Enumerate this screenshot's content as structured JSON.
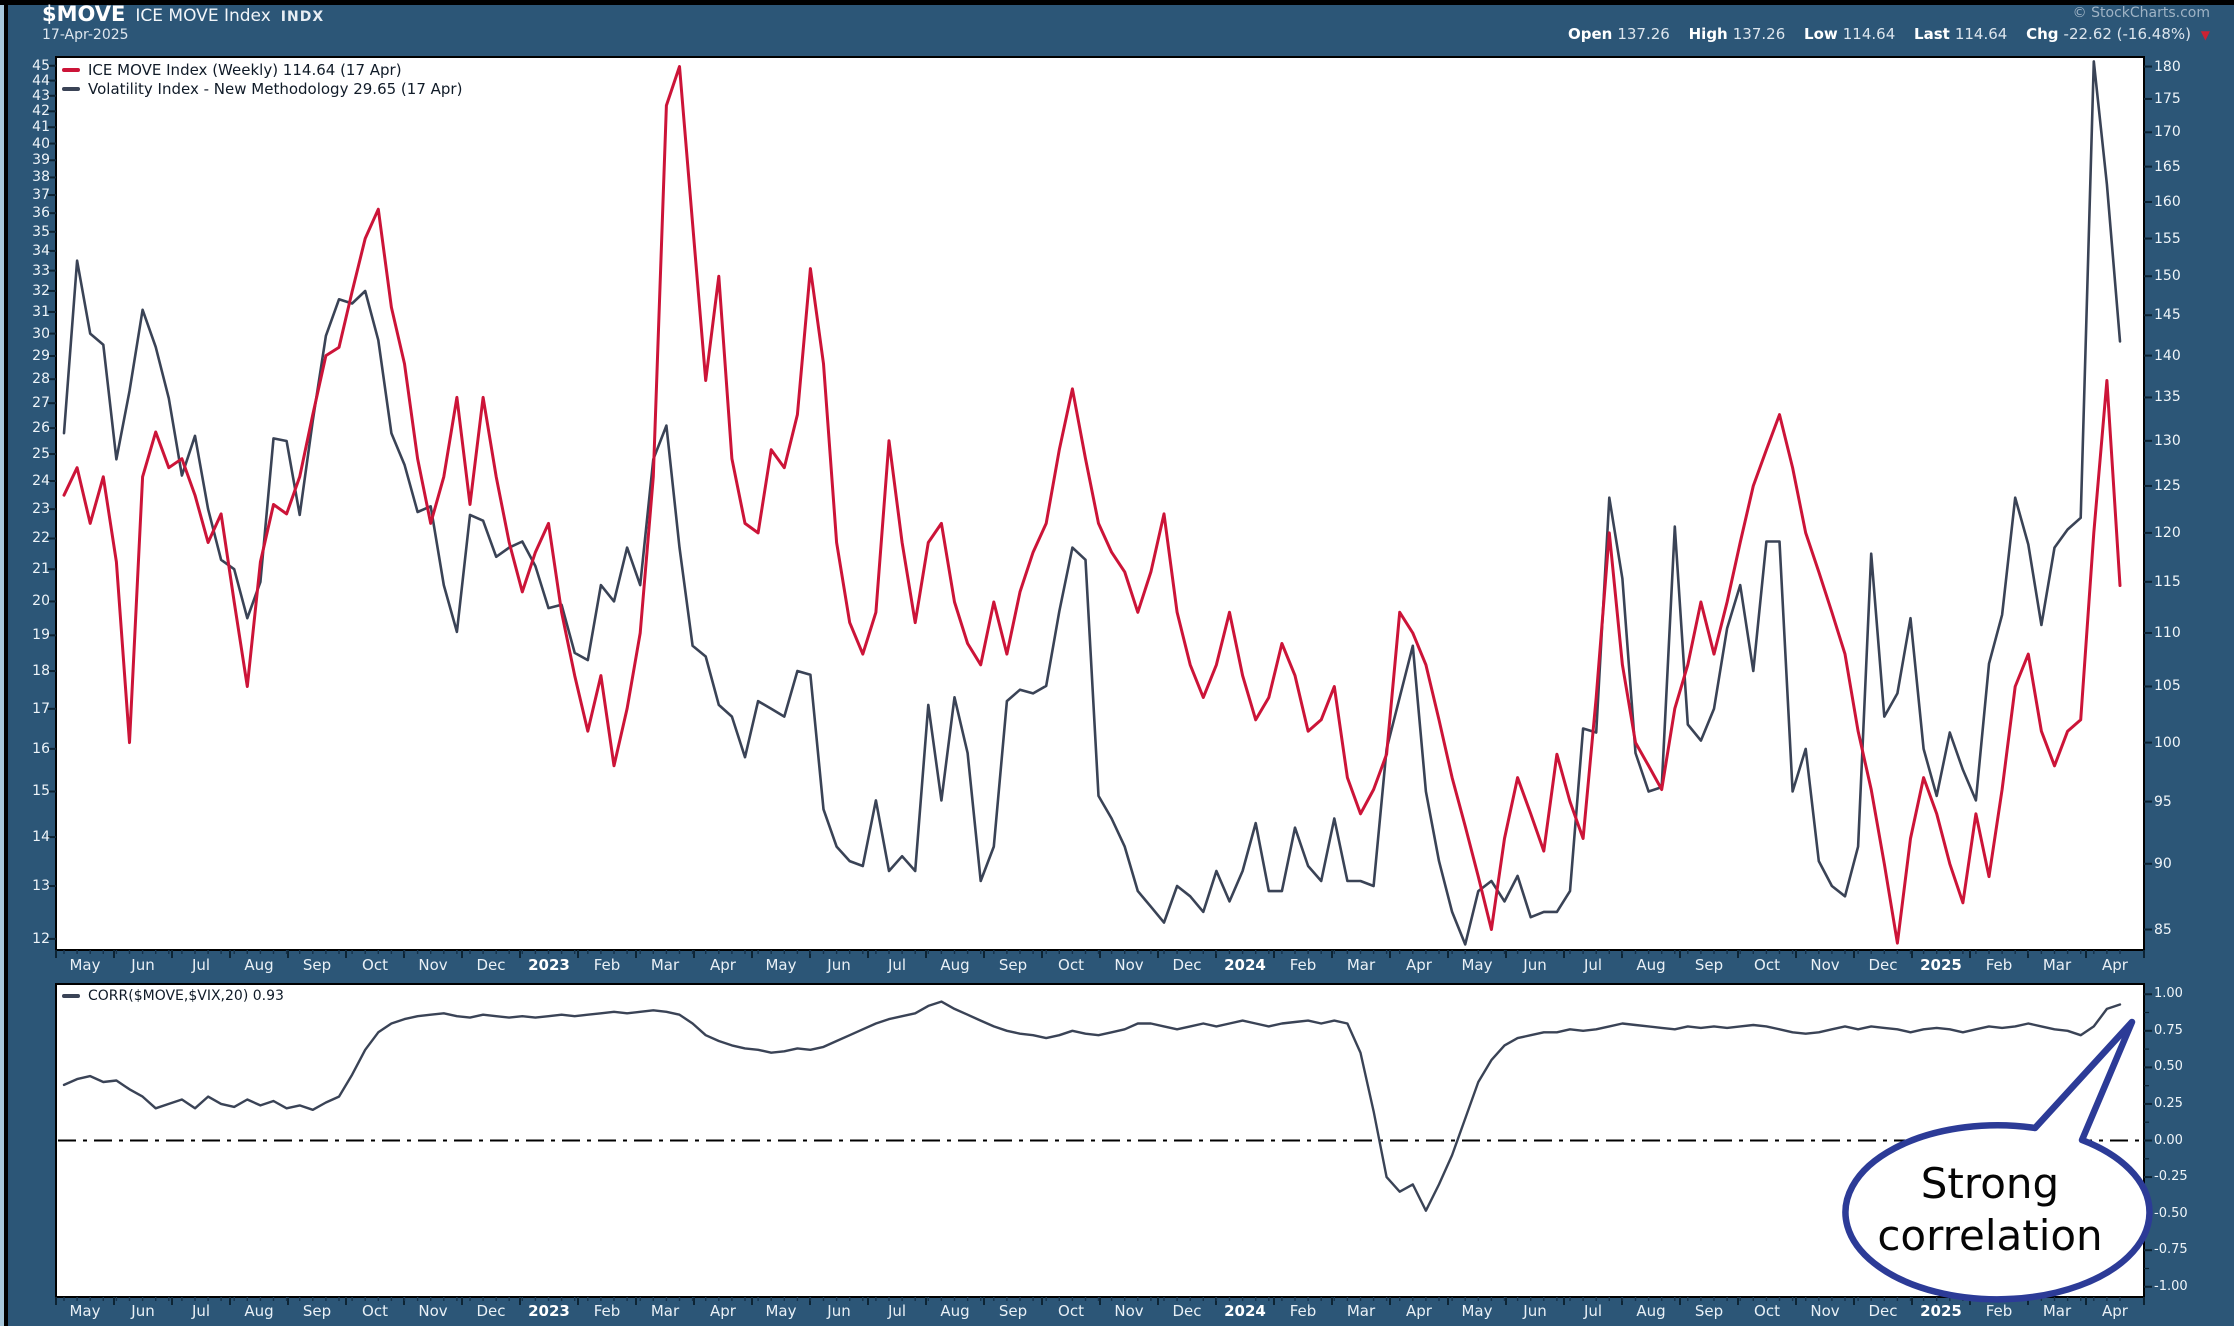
{
  "header": {
    "symbol": "$MOVE",
    "name": "ICE MOVE Index",
    "exchange": "INDX",
    "date": "17-Apr-2025",
    "copyright": "© StockCharts.com",
    "quote": {
      "open_label": "Open",
      "open": "137.26",
      "high_label": "High",
      "high": "137.26",
      "low_label": "Low",
      "low": "114.64",
      "last_label": "Last",
      "last": "114.64",
      "chg_label": "Chg",
      "chg": "-22.62 (-16.48%)",
      "arrow": "▼"
    }
  },
  "legend": {
    "move": "ICE MOVE Index (Weekly) 114.64 (17 Apr)",
    "vix": "Volatility Index - New Methodology 29.65 (17 Apr)",
    "corr": "CORR($MOVE,$VIX,20) 0.93"
  },
  "annotation": {
    "line1": "Strong",
    "line2": "correlation"
  },
  "colors": {
    "background": "#2c5677",
    "move": "#cc1438",
    "vix": "#3a4356",
    "corr_line": "#3a4356",
    "annotation_border": "#2c3b97",
    "chg_arrow": "#cc2233",
    "panel": "#ffffff",
    "tick_mark": "#0d2434"
  },
  "chart_data": [
    {
      "type": "line",
      "title": "ICE MOVE Index (Weekly) with Volatility Index - New Methodology overlay",
      "x_labels": [
        "May",
        "Jun",
        "Jul",
        "Aug",
        "Sep",
        "Oct",
        "Nov",
        "Dec",
        "2023",
        "Feb",
        "Mar",
        "Apr",
        "May",
        "Jun",
        "Jul",
        "Aug",
        "Sep",
        "Oct",
        "Nov",
        "Dec",
        "2024",
        "Feb",
        "Mar",
        "Apr",
        "May",
        "Jun",
        "Jul",
        "Aug",
        "Sep",
        "Oct",
        "Nov",
        "Dec",
        "2025",
        "Feb",
        "Mar",
        "Apr"
      ],
      "left_axis": {
        "scale": "log",
        "range": [
          12,
          45
        ],
        "ticks": [
          45,
          44,
          43,
          42,
          41,
          40,
          39,
          38,
          37,
          36,
          35,
          34,
          33,
          32,
          31,
          30,
          29,
          28,
          27,
          26,
          25,
          24,
          23,
          22,
          21,
          20,
          19,
          18,
          17,
          16,
          15,
          14,
          13,
          12
        ]
      },
      "right_axis": {
        "scale": "log",
        "range": [
          85,
          180
        ],
        "ticks": [
          180,
          175,
          170,
          165,
          160,
          155,
          150,
          145,
          140,
          135,
          130,
          125,
          120,
          115,
          110,
          105,
          100,
          95,
          90,
          85
        ]
      },
      "grid": false,
      "series": [
        {
          "name": "ICE MOVE Index (Weekly)",
          "axis": "right",
          "color": "#cc1438",
          "values": [
            124,
            127,
            121,
            126,
            117,
            100,
            126,
            131,
            127,
            128,
            124,
            119,
            122,
            113,
            105,
            117,
            123,
            122,
            126,
            133,
            140,
            141,
            148,
            155,
            159,
            146,
            139,
            128,
            121,
            126,
            135,
            123,
            135,
            126,
            119,
            114,
            118,
            121,
            112,
            106,
            101,
            106,
            98,
            103,
            110,
            126,
            174,
            180,
            157,
            137,
            150,
            128,
            121,
            120,
            129,
            127,
            133,
            151,
            139,
            119,
            111,
            108,
            112,
            130,
            119,
            111,
            119,
            121,
            113,
            109,
            107,
            113,
            108,
            114,
            118,
            121,
            129,
            136,
            128,
            121,
            118,
            116,
            112,
            116,
            122,
            112,
            107,
            104,
            107,
            112,
            106,
            102,
            104,
            109,
            106,
            101,
            102,
            105,
            97,
            94,
            96,
            99,
            112,
            110,
            107,
            102,
            97,
            93,
            89,
            85,
            92,
            97,
            94,
            91,
            99,
            95,
            92,
            104,
            120,
            107,
            100,
            98,
            96,
            103,
            107,
            113,
            108,
            113,
            119,
            125,
            129,
            133,
            127,
            120,
            116,
            112,
            108,
            101,
            96,
            90,
            84,
            92,
            97,
            94,
            90,
            87,
            94,
            89,
            96,
            105,
            108,
            101,
            98,
            101,
            102,
            120,
            137,
            114.64
          ]
        },
        {
          "name": "Volatility Index - New Methodology",
          "axis": "left",
          "color": "#3a4356",
          "values": [
            25.8,
            33.5,
            30,
            29.5,
            24.8,
            27.5,
            31.1,
            29.4,
            27.2,
            24.2,
            25.7,
            23,
            21.3,
            21,
            19.5,
            20.6,
            25.6,
            25.5,
            22.8,
            26.3,
            29.9,
            31.6,
            31.4,
            32,
            29.7,
            25.8,
            24.6,
            22.9,
            23.1,
            20.5,
            19.1,
            22.8,
            22.6,
            21.4,
            21.7,
            21.9,
            21.1,
            19.8,
            19.9,
            18.5,
            18.3,
            20.5,
            20,
            21.7,
            20.5,
            24.8,
            26.1,
            21.7,
            18.7,
            18.4,
            17.1,
            16.8,
            15.8,
            17.2,
            17,
            16.8,
            18,
            17.9,
            14.6,
            13.8,
            13.5,
            13.4,
            14.8,
            13.3,
            13.6,
            13.3,
            17.1,
            14.8,
            17.3,
            15.9,
            13.1,
            13.8,
            17.2,
            17.5,
            17.4,
            17.6,
            19.7,
            21.7,
            21.3,
            14.9,
            14.4,
            13.8,
            12.9,
            12.6,
            12.3,
            13,
            12.8,
            12.5,
            13.3,
            12.7,
            13.3,
            14.3,
            12.9,
            12.9,
            14.2,
            13.4,
            13.1,
            14.4,
            13.1,
            13.1,
            13,
            16,
            17.3,
            18.7,
            15,
            13.5,
            12.5,
            11.9,
            12.9,
            13.1,
            12.7,
            13.2,
            12.4,
            12.5,
            12.5,
            12.9,
            16.5,
            16.4,
            23.4,
            20.7,
            15.9,
            15,
            15.1,
            22.4,
            16.6,
            16.2,
            17,
            19.2,
            20.5,
            18,
            21.9,
            21.9,
            15,
            16,
            13.5,
            13,
            12.8,
            13.8,
            21.5,
            16.8,
            17.4,
            19.5,
            16,
            14.9,
            16.4,
            15.5,
            14.8,
            18.2,
            19.6,
            23.4,
            21.8,
            19.3,
            21.7,
            22.3,
            22.7,
            45.3,
            37.6,
            29.65
          ]
        }
      ]
    },
    {
      "type": "line",
      "title": "CORR($MOVE,$VIX,20)",
      "last_value": 0.93,
      "ylim": [
        -1,
        1
      ],
      "ticks": [
        "1.00",
        "0.75",
        "0.50",
        "0.25",
        "0.00",
        "-0.25",
        "-0.50",
        "-0.75",
        "-1.00"
      ],
      "zero_line": true,
      "color": "#3a4356",
      "values": [
        0.38,
        0.42,
        0.44,
        0.4,
        0.41,
        0.35,
        0.3,
        0.22,
        0.25,
        0.28,
        0.22,
        0.3,
        0.25,
        0.23,
        0.28,
        0.24,
        0.27,
        0.22,
        0.24,
        0.21,
        0.26,
        0.3,
        0.45,
        0.62,
        0.74,
        0.8,
        0.83,
        0.85,
        0.86,
        0.87,
        0.85,
        0.84,
        0.86,
        0.85,
        0.84,
        0.85,
        0.84,
        0.85,
        0.86,
        0.85,
        0.86,
        0.87,
        0.88,
        0.87,
        0.88,
        0.89,
        0.88,
        0.86,
        0.8,
        0.72,
        0.68,
        0.65,
        0.63,
        0.62,
        0.6,
        0.61,
        0.63,
        0.62,
        0.64,
        0.68,
        0.72,
        0.76,
        0.8,
        0.83,
        0.85,
        0.87,
        0.92,
        0.95,
        0.9,
        0.86,
        0.82,
        0.78,
        0.75,
        0.73,
        0.72,
        0.7,
        0.72,
        0.75,
        0.73,
        0.72,
        0.74,
        0.76,
        0.8,
        0.8,
        0.78,
        0.76,
        0.78,
        0.8,
        0.78,
        0.8,
        0.82,
        0.8,
        0.78,
        0.8,
        0.81,
        0.82,
        0.8,
        0.82,
        0.8,
        0.6,
        0.2,
        -0.25,
        -0.35,
        -0.3,
        -0.48,
        -0.3,
        -0.1,
        0.15,
        0.4,
        0.55,
        0.65,
        0.7,
        0.72,
        0.74,
        0.74,
        0.76,
        0.75,
        0.76,
        0.78,
        0.8,
        0.79,
        0.78,
        0.77,
        0.76,
        0.78,
        0.77,
        0.78,
        0.77,
        0.78,
        0.79,
        0.78,
        0.76,
        0.74,
        0.73,
        0.74,
        0.76,
        0.78,
        0.76,
        0.78,
        0.77,
        0.76,
        0.74,
        0.76,
        0.77,
        0.76,
        0.74,
        0.76,
        0.78,
        0.77,
        0.78,
        0.8,
        0.78,
        0.76,
        0.75,
        0.72,
        0.78,
        0.9,
        0.93
      ]
    }
  ]
}
